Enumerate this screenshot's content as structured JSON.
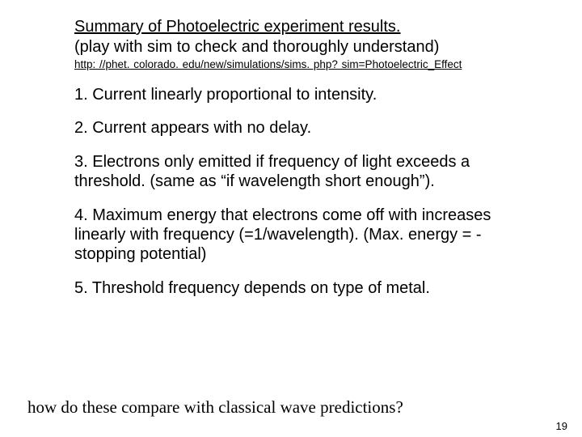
{
  "title": "Summary of Photoelectric experiment results.",
  "subtitle": "(play with sim to check and thoroughly understand)",
  "link": "http: //phet. colorado. edu/new/simulations/sims. php? sim=Photoelectric_Effect",
  "points": {
    "p1": "1. Current linearly proportional to intensity.",
    "p2": "2. Current appears with no delay.",
    "p3": "3. Electrons only emitted if frequency of light exceeds a threshold. (same as “if wavelength short enough”).",
    "p4": "4. Maximum energy that electrons come off with increases linearly with frequency (=1/wavelength). (Max. energy = -stopping potential)",
    "p5": "5. Threshold frequency depends on type of metal."
  },
  "question": "how do these compare with classical wave predictions?",
  "page_number": "19",
  "colors": {
    "background": "#ffffff",
    "text": "#000000"
  },
  "fontsizes": {
    "title": 20,
    "body": 20,
    "link": 13.5,
    "question": 21,
    "pagenum": 13
  }
}
